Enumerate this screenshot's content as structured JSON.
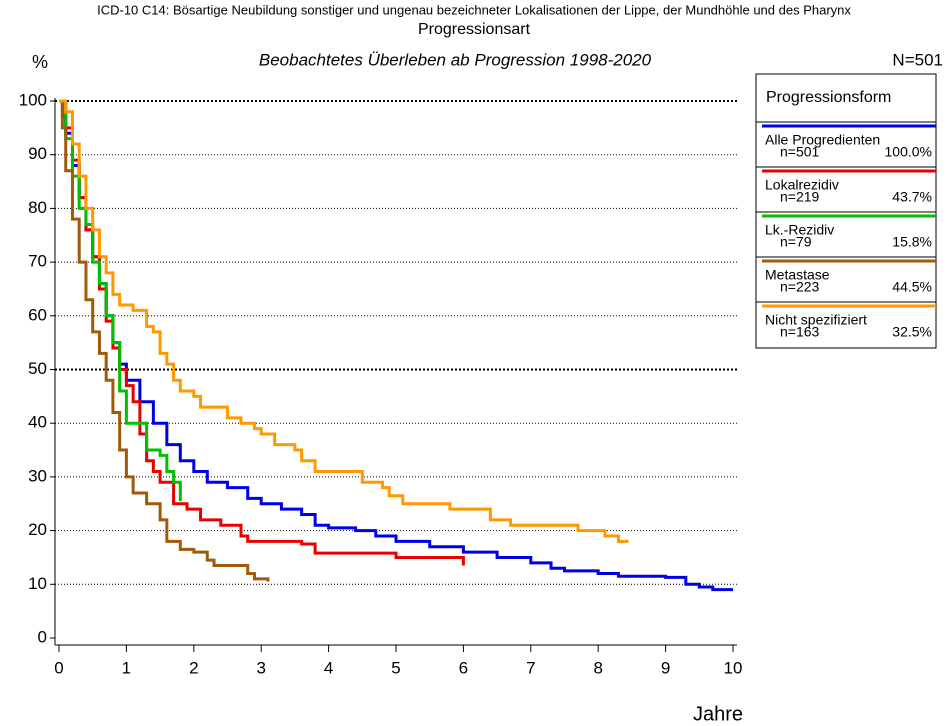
{
  "chart_data": {
    "type": "step",
    "suptitle": "ICD-10 C14: Bösartige Neubildung sonstiger und ungenau bezeichneter Lokalisationen der Lippe, der Mundhöhle und des Pharynx",
    "title": "Progressionsart",
    "subtitle": "Beobachtetes Überleben ab Progression 1998-2020",
    "n_total": "N=501",
    "ylabel": "%",
    "xlabel": "Jahre",
    "legend_title": "Progressionsform",
    "xlim": [
      0,
      10
    ],
    "xticks": [
      0,
      1,
      2,
      3,
      4,
      5,
      6,
      7,
      8,
      9,
      10
    ],
    "ylim": [
      0,
      100
    ],
    "yticks": [
      0,
      10,
      20,
      30,
      40,
      50,
      60,
      70,
      80,
      90,
      100
    ],
    "grid": true,
    "bold_grid": [
      50,
      100
    ],
    "series": [
      {
        "name": "Alle Progredienten",
        "n": "n=501",
        "percent": "100.0%",
        "color": "#0000e6",
        "x": [
          0,
          0.05,
          0.1,
          0.2,
          0.3,
          0.4,
          0.5,
          0.6,
          0.7,
          0.8,
          0.9,
          1.0,
          1.2,
          1.4,
          1.6,
          1.8,
          2.0,
          2.2,
          2.5,
          2.8,
          3.0,
          3.3,
          3.6,
          3.8,
          4.0,
          4.4,
          4.7,
          5.0,
          5.5,
          6.0,
          6.5,
          7.0,
          7.3,
          7.5,
          8.0,
          8.3,
          9.0,
          9.3,
          9.5,
          9.7,
          10.0
        ],
        "values": [
          100,
          97,
          94,
          88,
          82,
          76,
          71,
          66,
          60,
          55,
          51,
          48,
          44,
          40,
          36,
          33,
          31,
          29,
          28,
          26,
          25,
          24,
          23,
          21,
          20.5,
          20,
          19,
          18,
          17,
          16,
          15,
          14,
          13,
          12.5,
          12,
          11.5,
          11.3,
          10,
          9.5,
          9,
          9
        ]
      },
      {
        "name": "Lokalrezidiv",
        "n": "n=219",
        "percent": "43.7%",
        "color": "#e60000",
        "x": [
          0,
          0.1,
          0.2,
          0.3,
          0.4,
          0.5,
          0.6,
          0.7,
          0.8,
          0.9,
          1.0,
          1.1,
          1.2,
          1.3,
          1.4,
          1.5,
          1.7,
          1.9,
          2.1,
          2.4,
          2.7,
          2.8,
          3.5,
          3.6,
          3.8,
          4.5,
          5.0,
          5.9,
          6.0
        ],
        "values": [
          100,
          95,
          89,
          82,
          76,
          71,
          65,
          59,
          54,
          50,
          47,
          44,
          38,
          33,
          31,
          29,
          25,
          24,
          22,
          21,
          19,
          18,
          18,
          17.5,
          15.8,
          15.8,
          15,
          15,
          13.5
        ]
      },
      {
        "name": "Lk.-Rezidiv",
        "n": "n=79",
        "percent": "15.8%",
        "color": "#00c000",
        "x": [
          0,
          0.1,
          0.2,
          0.3,
          0.4,
          0.5,
          0.6,
          0.7,
          0.8,
          0.9,
          1.0,
          1.2,
          1.3,
          1.5,
          1.6,
          1.7,
          1.8
        ],
        "values": [
          100,
          93,
          86,
          80,
          77,
          70,
          66,
          60,
          55,
          46,
          40,
          40,
          35,
          34,
          31,
          29,
          25.5
        ]
      },
      {
        "name": "Metastase",
        "n": "n=223",
        "percent": "44.5%",
        "color": "#a05a0a",
        "x": [
          0,
          0.05,
          0.1,
          0.2,
          0.3,
          0.4,
          0.5,
          0.6,
          0.7,
          0.8,
          0.9,
          1.0,
          1.1,
          1.3,
          1.5,
          1.6,
          1.8,
          2.0,
          2.2,
          2.3,
          2.8,
          2.9,
          3.1
        ],
        "values": [
          100,
          95,
          87,
          78,
          70,
          63,
          57,
          53,
          48,
          42,
          35,
          30,
          27,
          25,
          22,
          18,
          16.5,
          16,
          14.5,
          13.5,
          12,
          11,
          10.5
        ]
      },
      {
        "name": "Nicht spezifiziert",
        "n": "n=163",
        "percent": "32.5%",
        "color": "#ff9900",
        "x": [
          0,
          0.1,
          0.2,
          0.3,
          0.4,
          0.5,
          0.6,
          0.7,
          0.8,
          0.9,
          1.1,
          1.3,
          1.4,
          1.5,
          1.6,
          1.7,
          1.8,
          2.0,
          2.1,
          2.5,
          2.7,
          2.9,
          3.0,
          3.2,
          3.5,
          3.6,
          3.8,
          4.4,
          4.5,
          4.8,
          4.9,
          5.1,
          5.7,
          5.8,
          6.3,
          6.4,
          6.7,
          7.6,
          7.7,
          8.0,
          8.1,
          8.3,
          8.45
        ],
        "values": [
          100,
          98,
          92,
          86,
          80,
          76,
          71,
          68,
          64,
          62,
          61,
          58,
          57,
          53,
          51,
          48,
          46,
          45,
          43,
          41,
          40,
          39,
          38,
          36,
          35,
          33,
          31,
          31,
          29,
          28,
          26.5,
          25,
          25,
          24,
          24,
          22,
          21,
          21,
          20,
          20,
          19,
          18,
          18
        ]
      }
    ]
  }
}
